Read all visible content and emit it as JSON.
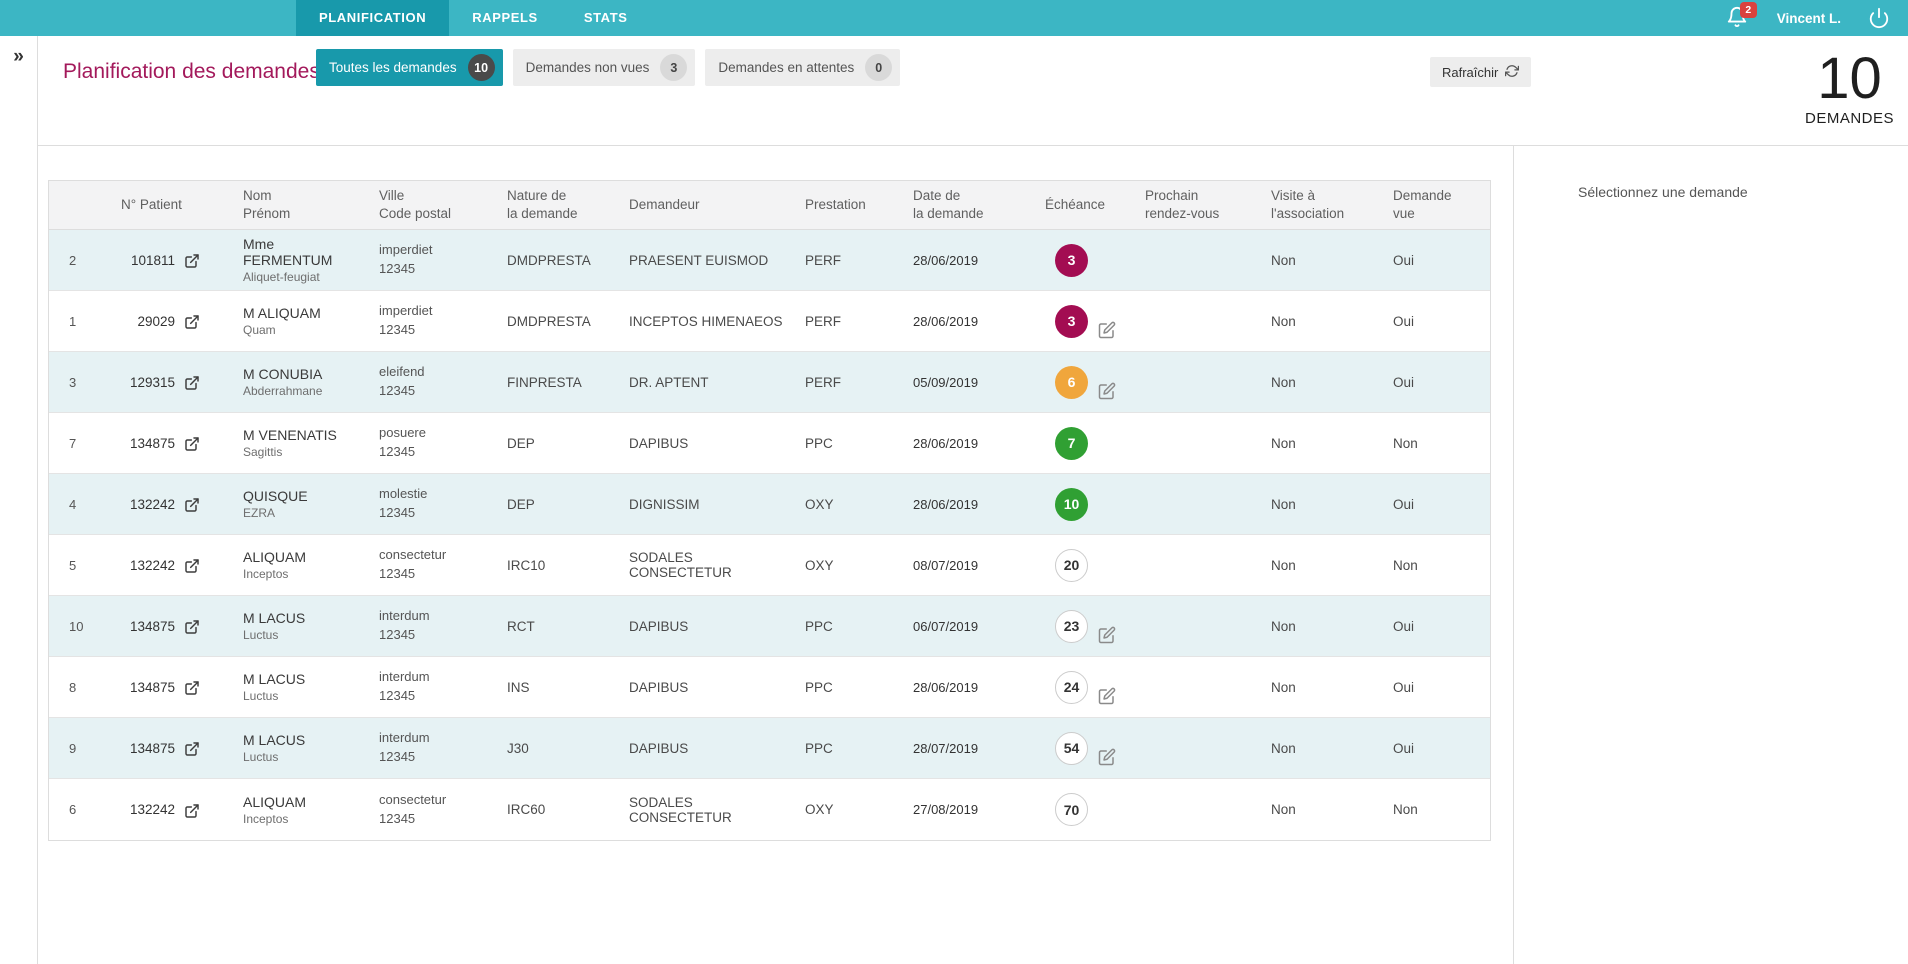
{
  "navbar": {
    "tabs": [
      {
        "label": "PLANIFICATION",
        "active": true
      },
      {
        "label": "RAPPELS",
        "active": false
      },
      {
        "label": "STATS",
        "active": false
      }
    ],
    "notifications_count": "2",
    "user_name": "Vincent L."
  },
  "sidebar": {
    "expand_icon": "»"
  },
  "header": {
    "title": "Planification des demandes",
    "filters": [
      {
        "label": "Toutes les demandes",
        "count": "10",
        "active": true
      },
      {
        "label": "Demandes non vues",
        "count": "3",
        "active": false
      },
      {
        "label": "Demandes en attentes",
        "count": "0",
        "active": false
      }
    ],
    "refresh_label": "Rafraîchir",
    "total_count": "10",
    "total_label": "DEMANDES"
  },
  "table": {
    "columns": [
      "",
      "N° Patient",
      "Nom\nPrénom",
      "Ville\nCode postal",
      "Nature de\nla demande",
      "Demandeur",
      "Prestation",
      "Date de\nla demande",
      "Échéance",
      "Prochain\nrendez-vous",
      "Visite à\nl'association",
      "Demande\nvue"
    ],
    "rows": [
      {
        "order": "2",
        "patient_id": "101811",
        "name": "Mme FERMENTUM",
        "first_name": "Aliquet-feugiat",
        "city": "imperdiet",
        "postal_code": "12345",
        "nature": "DMDPRESTA",
        "demandeur": "PRAESENT EUISMOD",
        "prestation": "PERF",
        "date": "28/06/2019",
        "echeance": "3",
        "echeance_level": "danger",
        "has_edit": false,
        "prochain_rdv": "",
        "visite": "Non",
        "vue": "Oui"
      },
      {
        "order": "1",
        "patient_id": "29029",
        "name": "M ALIQUAM",
        "first_name": "Quam",
        "city": "imperdiet",
        "postal_code": "12345",
        "nature": "DMDPRESTA",
        "demandeur": "INCEPTOS HIMENAEOS",
        "prestation": "PERF",
        "date": "28/06/2019",
        "echeance": "3",
        "echeance_level": "danger",
        "has_edit": true,
        "prochain_rdv": "",
        "visite": "Non",
        "vue": "Oui"
      },
      {
        "order": "3",
        "patient_id": "129315",
        "name": "M CONUBIA",
        "first_name": "Abderrahmane",
        "city": "eleifend",
        "postal_code": "12345",
        "nature": "FINPRESTA",
        "demandeur": "DR. APTENT",
        "prestation": "PERF",
        "date": "05/09/2019",
        "echeance": "6",
        "echeance_level": "warning",
        "has_edit": true,
        "prochain_rdv": "",
        "visite": "Non",
        "vue": "Oui"
      },
      {
        "order": "7",
        "patient_id": "134875",
        "name": "M VENENATIS",
        "first_name": "Sagittis",
        "city": "posuere",
        "postal_code": "12345",
        "nature": "DEP",
        "demandeur": "DAPIBUS",
        "prestation": "PPC",
        "date": "28/06/2019",
        "echeance": "7",
        "echeance_level": "success",
        "has_edit": false,
        "prochain_rdv": "",
        "visite": "Non",
        "vue": "Non"
      },
      {
        "order": "4",
        "patient_id": "132242",
        "name": "QUISQUE",
        "first_name": "EZRA",
        "city": "molestie",
        "postal_code": "12345",
        "nature": "DEP",
        "demandeur": "DIGNISSIM",
        "prestation": "OXY",
        "date": "28/06/2019",
        "echeance": "10",
        "echeance_level": "success",
        "has_edit": false,
        "prochain_rdv": "",
        "visite": "Non",
        "vue": "Oui"
      },
      {
        "order": "5",
        "patient_id": "132242",
        "name": "ALIQUAM",
        "first_name": "Inceptos",
        "city": "consectetur",
        "postal_code": "12345",
        "nature": "IRC10",
        "demandeur": "SODALES CONSECTETUR",
        "prestation": "OXY",
        "date": "08/07/2019",
        "echeance": "20",
        "echeance_level": "neutral",
        "has_edit": false,
        "prochain_rdv": "",
        "visite": "Non",
        "vue": "Non"
      },
      {
        "order": "10",
        "patient_id": "134875",
        "name": "M LACUS",
        "first_name": "Luctus",
        "city": "interdum",
        "postal_code": "12345",
        "nature": "RCT",
        "demandeur": "DAPIBUS",
        "prestation": "PPC",
        "date": "06/07/2019",
        "echeance": "23",
        "echeance_level": "neutral",
        "has_edit": true,
        "prochain_rdv": "",
        "visite": "Non",
        "vue": "Oui"
      },
      {
        "order": "8",
        "patient_id": "134875",
        "name": "M LACUS",
        "first_name": "Luctus",
        "city": "interdum",
        "postal_code": "12345",
        "nature": "INS",
        "demandeur": "DAPIBUS",
        "prestation": "PPC",
        "date": "28/06/2019",
        "echeance": "24",
        "echeance_level": "neutral",
        "has_edit": true,
        "prochain_rdv": "",
        "visite": "Non",
        "vue": "Oui"
      },
      {
        "order": "9",
        "patient_id": "134875",
        "name": "M LACUS",
        "first_name": "Luctus",
        "city": "interdum",
        "postal_code": "12345",
        "nature": "J30",
        "demandeur": "DAPIBUS",
        "prestation": "PPC",
        "date": "28/07/2019",
        "echeance": "54",
        "echeance_level": "neutral",
        "has_edit": true,
        "prochain_rdv": "",
        "visite": "Non",
        "vue": "Oui"
      },
      {
        "order": "6",
        "patient_id": "132242",
        "name": "ALIQUAM",
        "first_name": "Inceptos",
        "city": "consectetur",
        "postal_code": "12345",
        "nature": "IRC60",
        "demandeur": "SODALES CONSECTETUR",
        "prestation": "OXY",
        "date": "27/08/2019",
        "echeance": "70",
        "echeance_level": "neutral",
        "has_edit": false,
        "prochain_rdv": "",
        "visite": "Non",
        "vue": "Non"
      }
    ]
  },
  "detail_panel": {
    "placeholder": "Sélectionnez une demande"
  },
  "colors": {
    "navbar_teal": "#3cb6c4",
    "active_teal": "#1899ab",
    "title_magenta": "#a3195b",
    "badge_danger": "#a30d52",
    "badge_warning": "#f0a63c",
    "badge_success": "#30a033",
    "notification_red": "#d9423e",
    "row_alt": "#e6f2f4"
  }
}
